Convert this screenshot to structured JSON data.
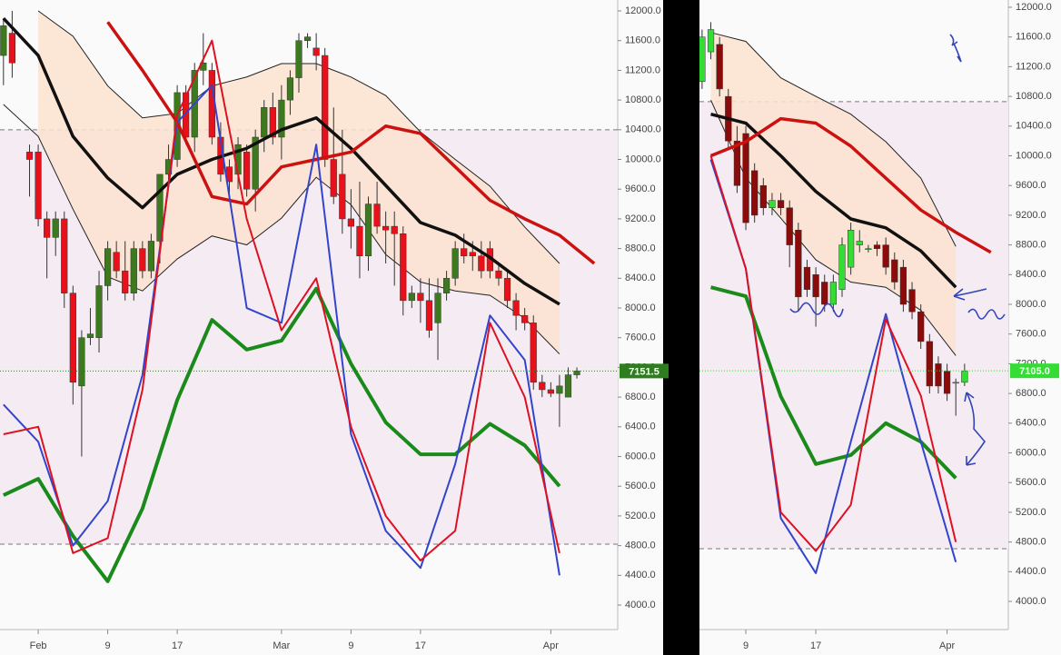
{
  "chart_data": [
    {
      "type": "candlestick",
      "xlim": [
        -4.4,
        66.7
      ],
      "ylim": [
        3670,
        12147
      ],
      "xticks": [
        {
          "value": 0,
          "label": "Feb"
        },
        {
          "value": 8,
          "label": "9"
        },
        {
          "value": 16,
          "label": "17"
        },
        {
          "value": 28,
          "label": "Mar"
        },
        {
          "value": 36,
          "label": "9"
        },
        {
          "value": 44,
          "label": "17"
        },
        {
          "value": 59,
          "label": "Apr"
        }
      ],
      "yticks": [
        {
          "value": 12000,
          "label": "12000.0"
        },
        {
          "value": 11600,
          "label": "11600.0"
        },
        {
          "value": 11200,
          "label": "11200.0"
        },
        {
          "value": 10800,
          "label": "10800.0"
        },
        {
          "value": 10400,
          "label": "10400.0"
        },
        {
          "value": 10000,
          "label": "10000.0"
        },
        {
          "value": 9600,
          "label": "9600.0"
        },
        {
          "value": 9200,
          "label": "9200.0"
        },
        {
          "value": 8800,
          "label": "8800.0"
        },
        {
          "value": 8400,
          "label": "8400.0"
        },
        {
          "value": 8000,
          "label": "8000.0"
        },
        {
          "value": 7600,
          "label": "7600.0"
        },
        {
          "value": 7200,
          "label": "7200.0"
        },
        {
          "value": 6800,
          "label": "6800.0"
        },
        {
          "value": 6400,
          "label": "6400.0"
        },
        {
          "value": 6000,
          "label": "6000.0"
        },
        {
          "value": 5600,
          "label": "5600.0"
        },
        {
          "value": 5200,
          "label": "5200.0"
        },
        {
          "value": 4800,
          "label": "4800.0"
        },
        {
          "value": 4400,
          "label": "4400.0"
        },
        {
          "value": 4000,
          "label": "4000.0"
        }
      ],
      "up_color": "#3d7a1f",
      "down_color": "#e8101a",
      "x": [
        -4,
        -3,
        -1,
        0,
        1,
        2,
        3,
        4,
        5,
        6,
        7,
        8,
        9,
        10,
        11,
        12,
        13,
        14,
        15,
        16,
        17,
        18,
        19,
        20,
        21,
        22,
        23,
        24,
        25,
        26,
        27,
        28,
        29,
        30,
        31,
        32,
        33,
        34,
        35,
        36,
        37,
        38,
        39,
        40,
        41,
        42,
        43,
        44,
        45,
        46,
        47,
        48,
        49,
        50,
        51,
        52,
        53,
        54,
        55,
        56,
        57,
        58,
        59,
        60,
        61,
        62
      ],
      "open": [
        11400,
        11700,
        10100,
        10100,
        9200,
        8950,
        9200,
        8200,
        6950,
        7600,
        7600,
        8300,
        8750,
        8500,
        8200,
        8800,
        8500,
        8900,
        9800,
        10000,
        10900,
        10300,
        11200,
        11200,
        10300,
        9900,
        9800,
        10100,
        9600,
        10300,
        10700,
        10300,
        10800,
        11100,
        11600,
        11500,
        11400,
        10000,
        9800,
        9200,
        9100,
        8700,
        9400,
        9100,
        9100,
        9000,
        8100,
        8200,
        8100,
        7800,
        8200,
        8400,
        8800,
        8750,
        8700,
        8800,
        8500,
        8400,
        8100,
        7900,
        7800,
        7000,
        6900,
        6850,
        6800,
        7100
      ],
      "high": [
        11900,
        12000,
        10200,
        10200,
        9300,
        9300,
        9300,
        8300,
        7700,
        8000,
        8500,
        8900,
        8900,
        8900,
        8900,
        8900,
        9000,
        9800,
        10200,
        11000,
        11000,
        11300,
        11700,
        11300,
        10500,
        10000,
        10300,
        10200,
        10400,
        10800,
        10900,
        11000,
        11200,
        11700,
        11700,
        11700,
        11500,
        10700,
        10400,
        9600,
        9700,
        9500,
        9700,
        9300,
        9300,
        9100,
        8300,
        8400,
        8400,
        8400,
        8500,
        8900,
        9000,
        8900,
        8900,
        8900,
        8600,
        8500,
        8200,
        8000,
        7900,
        7100,
        7000,
        7100,
        7200,
        7200
      ],
      "low": [
        11000,
        11100,
        9500,
        9100,
        8400,
        8700,
        8000,
        6700,
        6000,
        7500,
        7400,
        8100,
        8400,
        8100,
        8100,
        8400,
        8400,
        8600,
        9600,
        9900,
        10200,
        10100,
        11000,
        10200,
        9700,
        9500,
        9600,
        9500,
        9300,
        10100,
        10200,
        10000,
        10600,
        10900,
        11500,
        11200,
        9900,
        9400,
        9000,
        8800,
        8400,
        8500,
        9000,
        8600,
        8300,
        7900,
        8000,
        7800,
        7600,
        7300,
        8100,
        8300,
        8600,
        8500,
        8400,
        8400,
        8300,
        8000,
        7700,
        7700,
        6900,
        6800,
        6800,
        6400,
        6800,
        7050
      ],
      "close": [
        11800,
        11300,
        10000,
        9200,
        8950,
        9200,
        8200,
        7000,
        7600,
        7650,
        8300,
        8800,
        8500,
        8200,
        8800,
        8500,
        8900,
        9800,
        10000,
        10900,
        10300,
        11200,
        11300,
        10300,
        9800,
        9700,
        10200,
        9600,
        10300,
        10700,
        10300,
        10800,
        11100,
        11600,
        11650,
        11400,
        10000,
        9500,
        9200,
        9100,
        8700,
        9400,
        9100,
        9050,
        9000,
        8100,
        8200,
        8100,
        7700,
        8200,
        8400,
        8800,
        8700,
        8700,
        8500,
        8500,
        8400,
        8100,
        7900,
        7800,
        7000,
        6900,
        6850,
        6950,
        7100,
        7151.5
      ],
      "line_x": [
        -4,
        0,
        4,
        8,
        12,
        16,
        20,
        24,
        28,
        32,
        36,
        40,
        44,
        48,
        52,
        56,
        60,
        64
      ],
      "band": {
        "color": "#fbe3d0",
        "line_color": "#222",
        "upper": [
          null,
          12000,
          11660,
          10990,
          10560,
          10620,
          10990,
          11110,
          11290,
          11290,
          11110,
          10860,
          10370,
          10000,
          9640,
          9090,
          8600,
          null
        ],
        "lower": [
          10740,
          10310,
          9330,
          8420,
          8230,
          8660,
          8970,
          8850,
          9210,
          9760,
          9390,
          8720,
          8350,
          8230,
          8170,
          7860,
          7380,
          null
        ]
      },
      "lines": [
        {
          "color": "#111111",
          "width": 3.5,
          "values": [
            11900,
            11400,
            10310,
            9750,
            9350,
            9800,
            10000,
            10150,
            10400,
            10560,
            10150,
            9650,
            9150,
            8980,
            8680,
            8330,
            8050,
            null
          ]
        },
        {
          "color": "#cc1111",
          "width": 3.5,
          "values": [
            null,
            null,
            null,
            11850,
            11200,
            10500,
            9500,
            9400,
            9900,
            10000,
            10100,
            10450,
            10350,
            9900,
            9450,
            9200,
            8980,
            8600
          ]
        },
        {
          "color": "#1a8a1a",
          "width": 4,
          "values": [
            5480,
            5700,
            4930,
            4320,
            5300,
            6760,
            7840,
            7440,
            7560,
            8260,
            7250,
            6460,
            6030,
            6030,
            6440,
            6150,
            5600,
            null
          ]
        },
        {
          "color": "#3344cc",
          "width": 2,
          "values": [
            6700,
            6200,
            4800,
            5400,
            7100,
            10500,
            11000,
            8000,
            7800,
            10200,
            6300,
            5000,
            4500,
            5900,
            7900,
            7300,
            4400,
            null
          ]
        },
        {
          "color": "#dd1122",
          "width": 2,
          "values": [
            6300,
            6400,
            4700,
            4900,
            6900,
            10600,
            11600,
            9200,
            7700,
            8400,
            6400,
            5200,
            4600,
            5000,
            7800,
            6800,
            4700,
            null
          ]
        }
      ],
      "levels": [
        10400,
        4820
      ],
      "last_price": {
        "value": 7151.5,
        "label": "7151.5"
      },
      "last_price_color": "#2e7d1e"
    },
    {
      "type": "candlestick",
      "xlim": [
        30.7,
        66.0
      ],
      "ylim": [
        3621,
        12098
      ],
      "xticks": [
        {
          "value": 36,
          "label": "9"
        },
        {
          "value": 44,
          "label": "17"
        },
        {
          "value": 59,
          "label": "Apr"
        }
      ],
      "yticks": [
        {
          "value": 12000,
          "label": "12000.0"
        },
        {
          "value": 11600,
          "label": "11600.0"
        },
        {
          "value": 11200,
          "label": "11200.0"
        },
        {
          "value": 10800,
          "label": "10800.0"
        },
        {
          "value": 10400,
          "label": "10400.0"
        },
        {
          "value": 10000,
          "label": "10000.0"
        },
        {
          "value": 9600,
          "label": "9600.0"
        },
        {
          "value": 9200,
          "label": "9200.0"
        },
        {
          "value": 8800,
          "label": "8800.0"
        },
        {
          "value": 8400,
          "label": "8400.0"
        },
        {
          "value": 8000,
          "label": "8000.0"
        },
        {
          "value": 7600,
          "label": "7600.0"
        },
        {
          "value": 7200,
          "label": "7200.0"
        },
        {
          "value": 6800,
          "label": "6800.0"
        },
        {
          "value": 6400,
          "label": "6400.0"
        },
        {
          "value": 6000,
          "label": "6000.0"
        },
        {
          "value": 5600,
          "label": "5600.0"
        },
        {
          "value": 5200,
          "label": "5200.0"
        },
        {
          "value": 4800,
          "label": "4800.0"
        },
        {
          "value": 4400,
          "label": "4400.0"
        },
        {
          "value": 4000,
          "label": "4000.0"
        }
      ],
      "up_color": "#33dd33",
      "down_color": "#8b0a0a",
      "x": [
        31,
        32,
        33,
        34,
        35,
        36,
        37,
        38,
        39,
        40,
        41,
        42,
        43,
        44,
        45,
        46,
        47,
        48,
        49,
        50,
        51,
        52,
        53,
        54,
        55,
        56,
        57,
        58,
        59,
        60,
        61
      ],
      "open": [
        11000,
        11400,
        11500,
        10800,
        10200,
        10300,
        9800,
        9600,
        9300,
        9400,
        9300,
        9000,
        8500,
        8400,
        8300,
        8000,
        8200,
        8500,
        8800,
        8750,
        8800,
        8800,
        8600,
        8500,
        8200,
        7900,
        7500,
        7200,
        7100,
        6950,
        6950
      ],
      "high": [
        11700,
        11800,
        11600,
        10900,
        10400,
        10400,
        9900,
        9700,
        9500,
        9500,
        9400,
        9100,
        8600,
        8500,
        8400,
        8400,
        8900,
        9100,
        9000,
        8800,
        8850,
        8900,
        8700,
        8600,
        8300,
        8000,
        7600,
        7300,
        7200,
        7000,
        7200
      ],
      "low": [
        10900,
        11300,
        10800,
        10100,
        9500,
        9000,
        9100,
        9200,
        9200,
        9200,
        8500,
        7900,
        8100,
        7700,
        7900,
        7900,
        8100,
        8400,
        8700,
        8700,
        8650,
        8400,
        8200,
        7900,
        7800,
        7400,
        6800,
        6800,
        6700,
        6500,
        6900
      ],
      "close": [
        11600,
        11700,
        10900,
        10200,
        9600,
        9100,
        9200,
        9300,
        9400,
        9300,
        8800,
        8100,
        8200,
        8100,
        8000,
        8300,
        8800,
        9000,
        8850,
        8750,
        8750,
        8500,
        8300,
        8000,
        7900,
        7500,
        6900,
        6900,
        6800,
        6950,
        7105
      ],
      "line_x": [
        32,
        36,
        40,
        44,
        48,
        52,
        56,
        60,
        64
      ],
      "band": {
        "color": "#fbe3d0",
        "line_color": "#222",
        "upper": [
          11660,
          11540,
          11050,
          10800,
          10560,
          10190,
          9700,
          8780,
          null
        ],
        "lower": [
          10750,
          9700,
          9160,
          8600,
          8300,
          8230,
          7920,
          7310,
          null
        ]
      },
      "lines": [
        {
          "color": "#111111",
          "width": 3.5,
          "values": [
            10560,
            10440,
            10000,
            9520,
            9150,
            9030,
            8720,
            8230,
            null
          ]
        },
        {
          "color": "#cc1111",
          "width": 3.5,
          "values": [
            10000,
            10190,
            10500,
            10440,
            10130,
            9700,
            9270,
            8970,
            8700
          ]
        },
        {
          "color": "#1a8a1a",
          "width": 4,
          "values": [
            8230,
            8110,
            6760,
            5850,
            5970,
            6400,
            6150,
            5660,
            null
          ]
        },
        {
          "color": "#3344cc",
          "width": 2,
          "values": [
            9950,
            8480,
            5120,
            4380,
            6150,
            7870,
            6150,
            4530,
            null
          ]
        },
        {
          "color": "#dd1122",
          "width": 2,
          "values": [
            10000,
            8480,
            5200,
            4680,
            5300,
            7800,
            6770,
            4800,
            null
          ]
        }
      ],
      "levels": [
        10730,
        4710
      ],
      "last_price": {
        "value": 7105,
        "label": "7105.0"
      },
      "last_price_color": "#33dd33"
    }
  ]
}
